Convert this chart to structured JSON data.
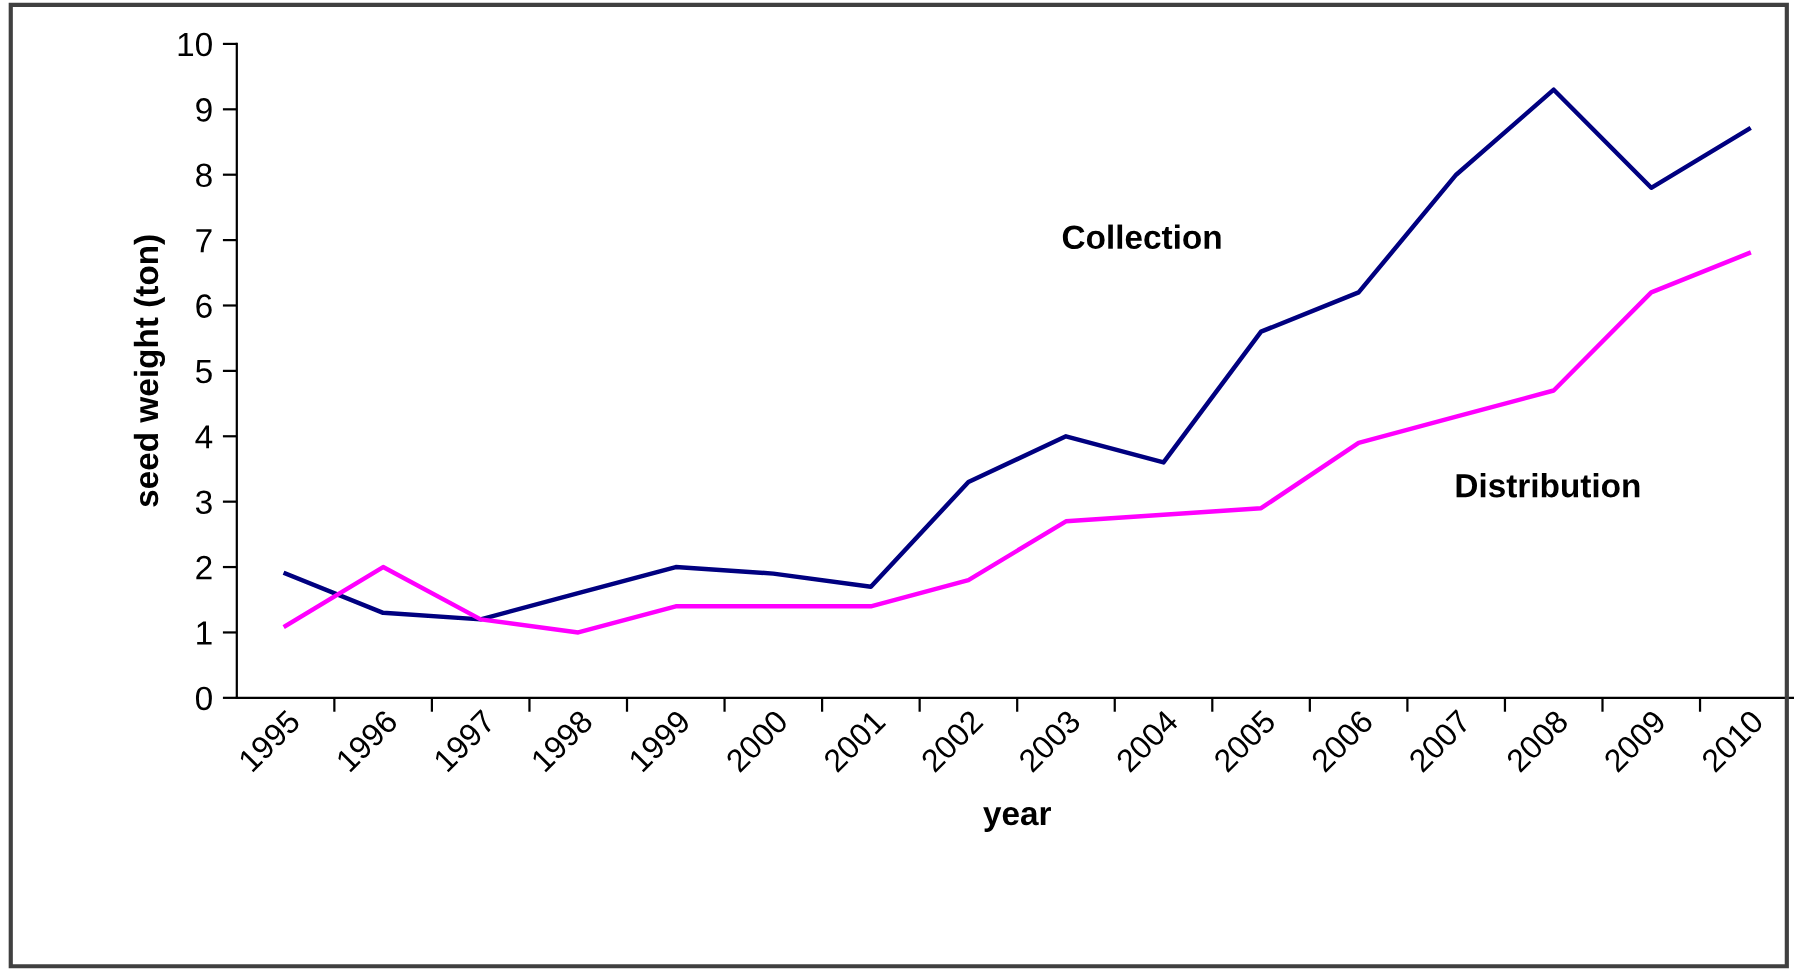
{
  "chart_data": {
    "type": "line",
    "xlabel": "year",
    "ylabel": "seed weight (ton)",
    "categories": [
      "1995",
      "1996",
      "1997",
      "1998",
      "1999",
      "2000",
      "2001",
      "2002",
      "2003",
      "2004",
      "2005",
      "2006",
      "2007",
      "2008",
      "2009",
      "2010"
    ],
    "series": [
      {
        "name": "Collection",
        "color": "#000080",
        "values": [
          1.9,
          1.3,
          1.2,
          1.6,
          2.0,
          1.9,
          1.7,
          3.3,
          4.0,
          3.6,
          5.6,
          6.2,
          8.0,
          9.3,
          7.8,
          8.7
        ]
      },
      {
        "name": "Distribution",
        "color": "#ff00ff",
        "values": [
          1.1,
          2.0,
          1.2,
          1.0,
          1.4,
          1.4,
          1.4,
          1.8,
          2.7,
          2.8,
          2.9,
          3.9,
          4.3,
          4.7,
          6.2,
          6.8
        ]
      }
    ],
    "ylim": [
      0,
      10
    ],
    "yticks": [
      0,
      1,
      2,
      3,
      4,
      5,
      6,
      7,
      8,
      9,
      10
    ],
    "grid": false,
    "legend": false,
    "marker": "none",
    "line_style": "solid"
  }
}
